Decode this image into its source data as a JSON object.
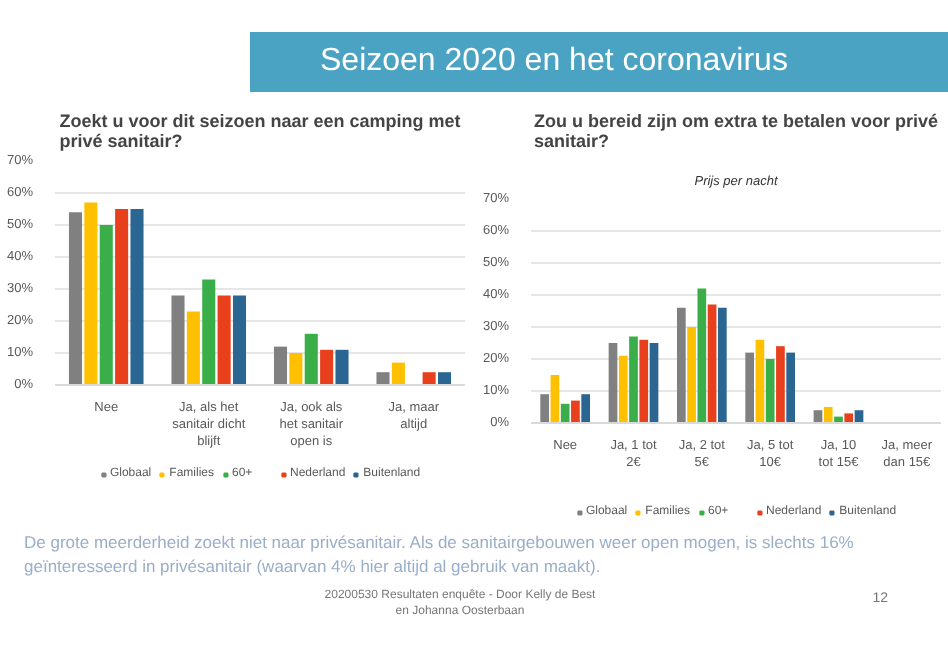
{
  "chart_data": [
    {
      "type": "other",
      "title": "Seizoen 2020 en het coronavirus"
    },
    {
      "type": "bar",
      "title": "Zoekt u voor dit seizoen naar een camping met privé sanitair?",
      "categories": [
        "Nee",
        "Ja, als het sanitair dicht blijft",
        "Ja, ook als het sanitair open is",
        "Ja, maar altijd"
      ],
      "series": [
        {
          "name": "Globaal",
          "color": "#808080",
          "values": [
            54,
            28,
            12,
            4
          ]
        },
        {
          "name": "Families",
          "color": "#ffc000",
          "values": [
            57,
            23,
            10,
            7
          ]
        },
        {
          "name": "60+",
          "color": "#3aae49",
          "values": [
            50,
            33,
            16,
            0
          ]
        },
        {
          "name": "Nederland",
          "color": "#e8401c",
          "values": [
            55,
            28,
            11,
            4
          ]
        },
        {
          "name": "Buitenland",
          "color": "#2b6591",
          "values": [
            55,
            28,
            11,
            4
          ]
        }
      ],
      "ylim": [
        0,
        70
      ],
      "yticks": [
        {
          "value": 0,
          "label": "0%"
        },
        {
          "value": 10,
          "label": "10%"
        },
        {
          "value": 20,
          "label": "20%"
        },
        {
          "value": 30,
          "label": "30%"
        },
        {
          "value": 40,
          "label": "40%"
        },
        {
          "value": 50,
          "label": "50%"
        },
        {
          "value": 60,
          "label": "60%"
        },
        {
          "value": 70,
          "label": "70%"
        }
      ],
      "grid": "y",
      "legend": "bottom"
    },
    {
      "type": "bar",
      "title": "Zou u bereid zijn om extra te betalen voor privé sanitair?",
      "subtitle": "Prijs per nacht",
      "categories": [
        "Nee",
        "Ja, 1 tot 2€",
        "Ja, 2 tot 5€",
        "Ja, 5 tot 10€",
        "Ja, 10 tot 15€",
        "Ja, meer dan 15€"
      ],
      "series": [
        {
          "name": "Globaal",
          "color": "#808080",
          "values": [
            9,
            25,
            36,
            22,
            4,
            0
          ]
        },
        {
          "name": "Families",
          "color": "#ffc000",
          "values": [
            15,
            21,
            30,
            26,
            5,
            0
          ]
        },
        {
          "name": "60+",
          "color": "#3aae49",
          "values": [
            6,
            27,
            42,
            20,
            2,
            0
          ]
        },
        {
          "name": "Nederland",
          "color": "#e8401c",
          "values": [
            7,
            26,
            37,
            24,
            3,
            0
          ]
        },
        {
          "name": "Buitenland",
          "color": "#2b6591",
          "values": [
            9,
            25,
            36,
            22,
            4,
            0
          ]
        }
      ],
      "ylim": [
        0,
        70
      ],
      "yticks": [
        {
          "value": 0,
          "label": "0%"
        },
        {
          "value": 10,
          "label": "10%"
        },
        {
          "value": 20,
          "label": "20%"
        },
        {
          "value": 30,
          "label": "30%"
        },
        {
          "value": 40,
          "label": "40%"
        },
        {
          "value": 50,
          "label": "50%"
        },
        {
          "value": 60,
          "label": "60%"
        },
        {
          "value": 70,
          "label": "70%"
        }
      ],
      "grid": "y",
      "legend": "bottom"
    },
    {
      "type": "other",
      "annotations": [
        "De grote meerderheid zoekt niet naar privésanitair. Als de sanitairgebouwen weer open mogen, is slechts 16% geïnteresseerd in privésanitair (waarvan 4% hier altijd al gebruik van maakt).",
        "20200530 Resultaten enquête - Door Kelly de Best en Johanna Oosterbaan",
        "12"
      ]
    }
  ]
}
